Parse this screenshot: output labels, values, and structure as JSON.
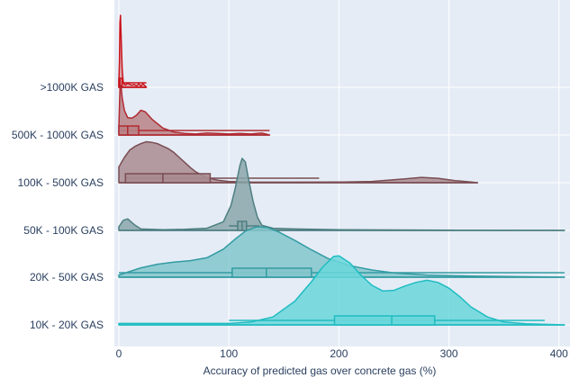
{
  "chart_data": {
    "type": "violin",
    "orientation": "horizontal",
    "side": "positive",
    "xlabel": "Accuracy of predicted gas over concrete gas (%)",
    "ylabel": "",
    "xlim": [
      -10,
      405
    ],
    "x_ticks": [
      0,
      100,
      200,
      300,
      400
    ],
    "grid": "on",
    "categories": [
      "10K - 20K GAS",
      "20K - 50K GAS",
      "50K - 100K GAS",
      "100K - 500K GAS",
      "500K - 1000K GAS",
      ">1000K GAS"
    ],
    "series": [
      {
        "category": ">1000K GAS",
        "color": "#c9141c",
        "fill": "#d89a9c",
        "height": 80,
        "min": 0,
        "max": 25,
        "box": {
          "q1": 0,
          "median": 1,
          "q3": 3,
          "whisker_low": 0,
          "whisker_high": 25
        },
        "density": [
          [
            0,
            0.05
          ],
          [
            0.5,
            0.35
          ],
          [
            1,
            0.9
          ],
          [
            1.5,
            1
          ],
          [
            2,
            0.75
          ],
          [
            3,
            0.25
          ],
          [
            4,
            0.06
          ],
          [
            6,
            0.03
          ],
          [
            8,
            0.06
          ],
          [
            10,
            0.04
          ],
          [
            12,
            0.03
          ],
          [
            14,
            0.04
          ],
          [
            16,
            0.02
          ],
          [
            18,
            0.05
          ],
          [
            20,
            0.02
          ],
          [
            22,
            0.05
          ],
          [
            25,
            0
          ]
        ]
      },
      {
        "category": "500K - 1000K GAS",
        "color": "#b02a31",
        "fill": "#b98386",
        "height": 55,
        "min": 0,
        "max": 137,
        "box": {
          "q1": 0,
          "median": 8,
          "q3": 18,
          "whisker_low": 0,
          "whisker_high": 137
        },
        "density": [
          [
            0,
            0.15
          ],
          [
            1,
            0.95
          ],
          [
            2,
            1
          ],
          [
            3,
            0.75
          ],
          [
            5,
            0.5
          ],
          [
            8,
            0.35
          ],
          [
            12,
            0.34
          ],
          [
            16,
            0.4
          ],
          [
            20,
            0.5
          ],
          [
            24,
            0.47
          ],
          [
            30,
            0.32
          ],
          [
            40,
            0.14
          ],
          [
            50,
            0.06
          ],
          [
            60,
            0.03
          ],
          [
            70,
            0.02
          ],
          [
            80,
            0.04
          ],
          [
            90,
            0.03
          ],
          [
            100,
            0.02
          ],
          [
            110,
            0.03
          ],
          [
            120,
            0.02
          ],
          [
            130,
            0.04
          ],
          [
            137,
            0
          ]
        ]
      },
      {
        "category": "100K - 500K GAS",
        "color": "#7a4d52",
        "fill": "#a98c91",
        "height": 70,
        "min": 0,
        "max": 326,
        "box": {
          "q1": 6,
          "median": 40,
          "q3": 83,
          "whisker_low": 6,
          "whisker_high": 182
        },
        "density": [
          [
            0,
            0.25
          ],
          [
            5,
            0.4
          ],
          [
            10,
            0.52
          ],
          [
            15,
            0.58
          ],
          [
            20,
            0.62
          ],
          [
            25,
            0.65
          ],
          [
            30,
            0.64
          ],
          [
            35,
            0.62
          ],
          [
            40,
            0.58
          ],
          [
            45,
            0.54
          ],
          [
            50,
            0.48
          ],
          [
            55,
            0.4
          ],
          [
            60,
            0.32
          ],
          [
            65,
            0.24
          ],
          [
            70,
            0.17
          ],
          [
            80,
            0.08
          ],
          [
            90,
            0.04
          ],
          [
            100,
            0.02
          ],
          [
            120,
            0.01
          ],
          [
            150,
            0.008
          ],
          [
            200,
            0.01
          ],
          [
            230,
            0.02
          ],
          [
            260,
            0.06
          ],
          [
            275,
            0.085
          ],
          [
            290,
            0.07
          ],
          [
            305,
            0.035
          ],
          [
            320,
            0.01
          ],
          [
            326,
            0
          ]
        ]
      },
      {
        "category": "50K - 100K GAS",
        "color": "#4e7f82",
        "fill": "#8aa7aa",
        "height": 80,
        "min": 0,
        "max": 405,
        "box": {
          "q1": 108,
          "median": 112,
          "q3": 116,
          "whisker_low": 100,
          "whisker_high": 128
        },
        "density": [
          [
            0,
            0.05
          ],
          [
            4,
            0.14
          ],
          [
            8,
            0.16
          ],
          [
            14,
            0.08
          ],
          [
            20,
            0.02
          ],
          [
            40,
            0.01
          ],
          [
            60,
            0.015
          ],
          [
            80,
            0.03
          ],
          [
            95,
            0.12
          ],
          [
            102,
            0.35
          ],
          [
            106,
            0.6
          ],
          [
            110,
            0.9
          ],
          [
            112,
            1
          ],
          [
            115,
            0.95
          ],
          [
            118,
            0.7
          ],
          [
            122,
            0.4
          ],
          [
            126,
            0.18
          ],
          [
            130,
            0.07
          ],
          [
            140,
            0.03
          ],
          [
            160,
            0.02
          ],
          [
            200,
            0.01
          ],
          [
            300,
            0.003
          ],
          [
            405,
            0
          ]
        ]
      },
      {
        "category": "20K - 50K GAS",
        "color": "#339ba2",
        "fill": "#84c7cc",
        "height": 80,
        "min": 0,
        "max": 405,
        "box": {
          "q1": 103,
          "median": 134,
          "q3": 175,
          "whisker_low": 0,
          "whisker_high": 405
        },
        "density": [
          [
            0,
            0.03
          ],
          [
            10,
            0.08
          ],
          [
            20,
            0.13
          ],
          [
            35,
            0.18
          ],
          [
            50,
            0.21
          ],
          [
            65,
            0.23
          ],
          [
            80,
            0.27
          ],
          [
            95,
            0.39
          ],
          [
            105,
            0.52
          ],
          [
            115,
            0.64
          ],
          [
            125,
            0.7
          ],
          [
            135,
            0.69
          ],
          [
            145,
            0.63
          ],
          [
            160,
            0.51
          ],
          [
            175,
            0.38
          ],
          [
            190,
            0.26
          ],
          [
            210,
            0.16
          ],
          [
            230,
            0.1
          ],
          [
            250,
            0.06
          ],
          [
            280,
            0.03
          ],
          [
            320,
            0.015
          ],
          [
            405,
            0
          ]
        ]
      },
      {
        "category": "10K - 20K GAS",
        "color": "#1fbcc1",
        "fill": "#6ad7da",
        "height": 80,
        "min": 0,
        "max": 405,
        "box": {
          "q1": 196,
          "median": 248,
          "q3": 287,
          "whisker_low": 100,
          "whisker_high": 387
        },
        "density": [
          [
            0,
            0.02
          ],
          [
            50,
            0.02
          ],
          [
            100,
            0.02
          ],
          [
            120,
            0.04
          ],
          [
            140,
            0.11
          ],
          [
            160,
            0.33
          ],
          [
            175,
            0.6
          ],
          [
            185,
            0.8
          ],
          [
            195,
            0.95
          ],
          [
            200,
            0.96
          ],
          [
            210,
            0.86
          ],
          [
            220,
            0.69
          ],
          [
            230,
            0.55
          ],
          [
            240,
            0.47
          ],
          [
            250,
            0.48
          ],
          [
            260,
            0.54
          ],
          [
            270,
            0.59
          ],
          [
            280,
            0.62
          ],
          [
            290,
            0.59
          ],
          [
            300,
            0.51
          ],
          [
            310,
            0.39
          ],
          [
            320,
            0.25
          ],
          [
            335,
            0.11
          ],
          [
            350,
            0.04
          ],
          [
            370,
            0.015
          ],
          [
            405,
            0
          ]
        ]
      }
    ]
  }
}
